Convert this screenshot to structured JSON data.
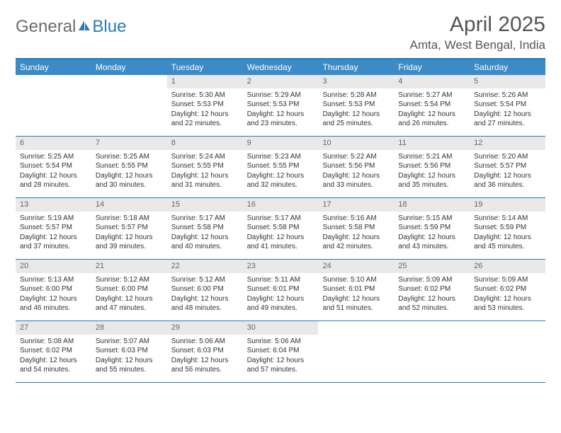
{
  "logo": {
    "text_general": "General",
    "text_blue": "Blue"
  },
  "title": "April 2025",
  "location": "Amta, West Bengal, India",
  "colors": {
    "header_bar": "#3b8bc9",
    "border": "#2a7ab8",
    "daynum_bg": "#e9e9e9",
    "text": "#333333",
    "muted": "#666666"
  },
  "weekdays": [
    "Sunday",
    "Monday",
    "Tuesday",
    "Wednesday",
    "Thursday",
    "Friday",
    "Saturday"
  ],
  "first_weekday_index": 2,
  "days": [
    {
      "n": 1,
      "sunrise": "5:30 AM",
      "sunset": "5:53 PM",
      "daylight": "12 hours and 22 minutes."
    },
    {
      "n": 2,
      "sunrise": "5:29 AM",
      "sunset": "5:53 PM",
      "daylight": "12 hours and 23 minutes."
    },
    {
      "n": 3,
      "sunrise": "5:28 AM",
      "sunset": "5:53 PM",
      "daylight": "12 hours and 25 minutes."
    },
    {
      "n": 4,
      "sunrise": "5:27 AM",
      "sunset": "5:54 PM",
      "daylight": "12 hours and 26 minutes."
    },
    {
      "n": 5,
      "sunrise": "5:26 AM",
      "sunset": "5:54 PM",
      "daylight": "12 hours and 27 minutes."
    },
    {
      "n": 6,
      "sunrise": "5:25 AM",
      "sunset": "5:54 PM",
      "daylight": "12 hours and 28 minutes."
    },
    {
      "n": 7,
      "sunrise": "5:25 AM",
      "sunset": "5:55 PM",
      "daylight": "12 hours and 30 minutes."
    },
    {
      "n": 8,
      "sunrise": "5:24 AM",
      "sunset": "5:55 PM",
      "daylight": "12 hours and 31 minutes."
    },
    {
      "n": 9,
      "sunrise": "5:23 AM",
      "sunset": "5:55 PM",
      "daylight": "12 hours and 32 minutes."
    },
    {
      "n": 10,
      "sunrise": "5:22 AM",
      "sunset": "5:56 PM",
      "daylight": "12 hours and 33 minutes."
    },
    {
      "n": 11,
      "sunrise": "5:21 AM",
      "sunset": "5:56 PM",
      "daylight": "12 hours and 35 minutes."
    },
    {
      "n": 12,
      "sunrise": "5:20 AM",
      "sunset": "5:57 PM",
      "daylight": "12 hours and 36 minutes."
    },
    {
      "n": 13,
      "sunrise": "5:19 AM",
      "sunset": "5:57 PM",
      "daylight": "12 hours and 37 minutes."
    },
    {
      "n": 14,
      "sunrise": "5:18 AM",
      "sunset": "5:57 PM",
      "daylight": "12 hours and 39 minutes."
    },
    {
      "n": 15,
      "sunrise": "5:17 AM",
      "sunset": "5:58 PM",
      "daylight": "12 hours and 40 minutes."
    },
    {
      "n": 16,
      "sunrise": "5:17 AM",
      "sunset": "5:58 PM",
      "daylight": "12 hours and 41 minutes."
    },
    {
      "n": 17,
      "sunrise": "5:16 AM",
      "sunset": "5:58 PM",
      "daylight": "12 hours and 42 minutes."
    },
    {
      "n": 18,
      "sunrise": "5:15 AM",
      "sunset": "5:59 PM",
      "daylight": "12 hours and 43 minutes."
    },
    {
      "n": 19,
      "sunrise": "5:14 AM",
      "sunset": "5:59 PM",
      "daylight": "12 hours and 45 minutes."
    },
    {
      "n": 20,
      "sunrise": "5:13 AM",
      "sunset": "6:00 PM",
      "daylight": "12 hours and 46 minutes."
    },
    {
      "n": 21,
      "sunrise": "5:12 AM",
      "sunset": "6:00 PM",
      "daylight": "12 hours and 47 minutes."
    },
    {
      "n": 22,
      "sunrise": "5:12 AM",
      "sunset": "6:00 PM",
      "daylight": "12 hours and 48 minutes."
    },
    {
      "n": 23,
      "sunrise": "5:11 AM",
      "sunset": "6:01 PM",
      "daylight": "12 hours and 49 minutes."
    },
    {
      "n": 24,
      "sunrise": "5:10 AM",
      "sunset": "6:01 PM",
      "daylight": "12 hours and 51 minutes."
    },
    {
      "n": 25,
      "sunrise": "5:09 AM",
      "sunset": "6:02 PM",
      "daylight": "12 hours and 52 minutes."
    },
    {
      "n": 26,
      "sunrise": "5:09 AM",
      "sunset": "6:02 PM",
      "daylight": "12 hours and 53 minutes."
    },
    {
      "n": 27,
      "sunrise": "5:08 AM",
      "sunset": "6:02 PM",
      "daylight": "12 hours and 54 minutes."
    },
    {
      "n": 28,
      "sunrise": "5:07 AM",
      "sunset": "6:03 PM",
      "daylight": "12 hours and 55 minutes."
    },
    {
      "n": 29,
      "sunrise": "5:06 AM",
      "sunset": "6:03 PM",
      "daylight": "12 hours and 56 minutes."
    },
    {
      "n": 30,
      "sunrise": "5:06 AM",
      "sunset": "6:04 PM",
      "daylight": "12 hours and 57 minutes."
    }
  ],
  "labels": {
    "sunrise": "Sunrise:",
    "sunset": "Sunset:",
    "daylight": "Daylight:"
  }
}
